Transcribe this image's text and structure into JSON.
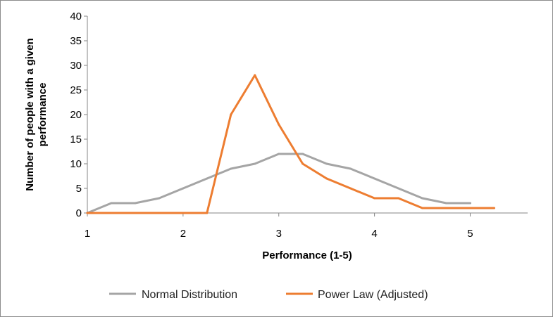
{
  "chart_data": {
    "type": "line",
    "xlabel": "Performance (1-5)",
    "ylabel_line1": "Number of people with a given",
    "ylabel_line2": "performance",
    "xlim": [
      1,
      5.6
    ],
    "ylim": [
      0,
      40
    ],
    "x_ticks": [
      1,
      2,
      3,
      4,
      5
    ],
    "y_ticks": [
      0,
      5,
      10,
      15,
      20,
      25,
      30,
      35,
      40
    ],
    "grid": false,
    "legend_position": "bottom",
    "series": [
      {
        "name": "Normal Distribution",
        "color": "#a5a5a5",
        "x": [
          1,
          1.25,
          1.5,
          1.75,
          2,
          2.25,
          2.5,
          2.75,
          3,
          3.25,
          3.5,
          3.75,
          4,
          4.25,
          4.5,
          4.75,
          5
        ],
        "values": [
          0,
          2,
          2,
          3,
          5,
          7,
          9,
          10,
          12,
          12,
          10,
          9,
          7,
          5,
          3,
          2,
          2
        ]
      },
      {
        "name": "Power Law (Adjusted)",
        "color": "#ed7d31",
        "x": [
          1,
          1.25,
          1.5,
          1.75,
          2,
          2.25,
          2.5,
          2.75,
          3,
          3.25,
          3.5,
          3.75,
          4,
          4.25,
          4.5,
          4.75,
          5,
          5.25
        ],
        "values": [
          0,
          0,
          0,
          0,
          0,
          0,
          20,
          28,
          18,
          10,
          7,
          5,
          3,
          3,
          1,
          1,
          1,
          1
        ]
      }
    ]
  }
}
